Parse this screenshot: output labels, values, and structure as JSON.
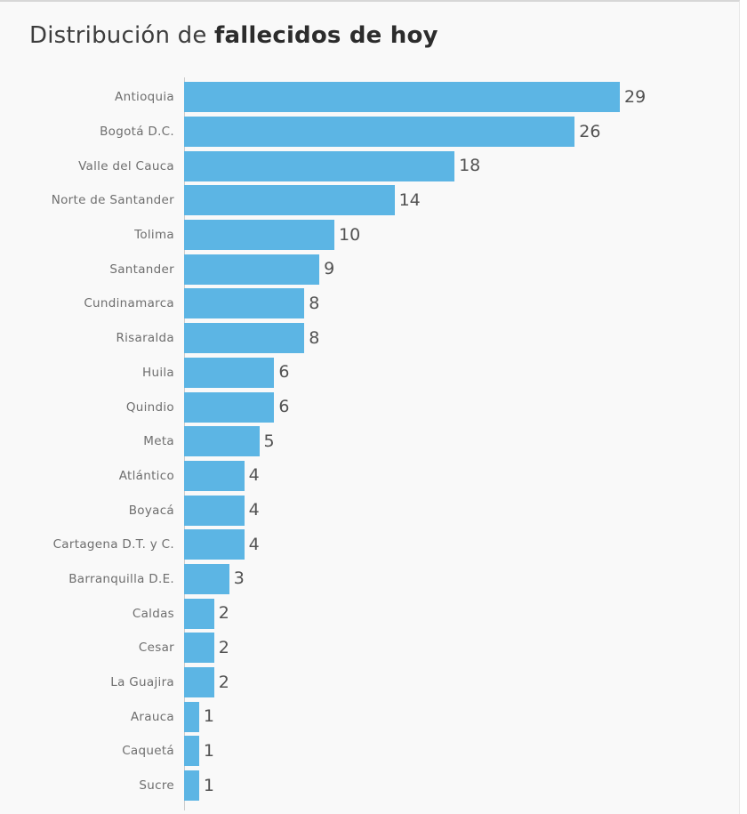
{
  "title": {
    "regular": "Distribución de ",
    "bold": "fallecidos de hoy"
  },
  "chart_data": {
    "type": "bar",
    "orientation": "horizontal",
    "title": "Distribución de fallecidos de hoy",
    "categories": [
      "Antioquia",
      "Bogotá D.C.",
      "Valle del Cauca",
      "Norte de Santander",
      "Tolima",
      "Santander",
      "Cundinamarca",
      "Risaralda",
      "Huila",
      "Quindio",
      "Meta",
      "Atlántico",
      "Boyacá",
      "Cartagena D.T. y C.",
      "Barranquilla D.E.",
      "Caldas",
      "Cesar",
      "La Guajira",
      "Arauca",
      "Caquetá",
      "Sucre"
    ],
    "values": [
      29,
      26,
      18,
      14,
      10,
      9,
      8,
      8,
      6,
      6,
      5,
      4,
      4,
      4,
      3,
      2,
      2,
      2,
      1,
      1,
      1
    ],
    "xlabel": "",
    "ylabel": "",
    "xlim": [
      0,
      29
    ],
    "grid": false,
    "legend": false,
    "value_labels_shown": true,
    "bar_color": "#5cb5e4",
    "label_color": "#6e6e6e",
    "value_color": "#525252",
    "title_color": "#2c2c2c",
    "background_color": "#f9f9f9",
    "axis_line_color": "#cccccc"
  }
}
